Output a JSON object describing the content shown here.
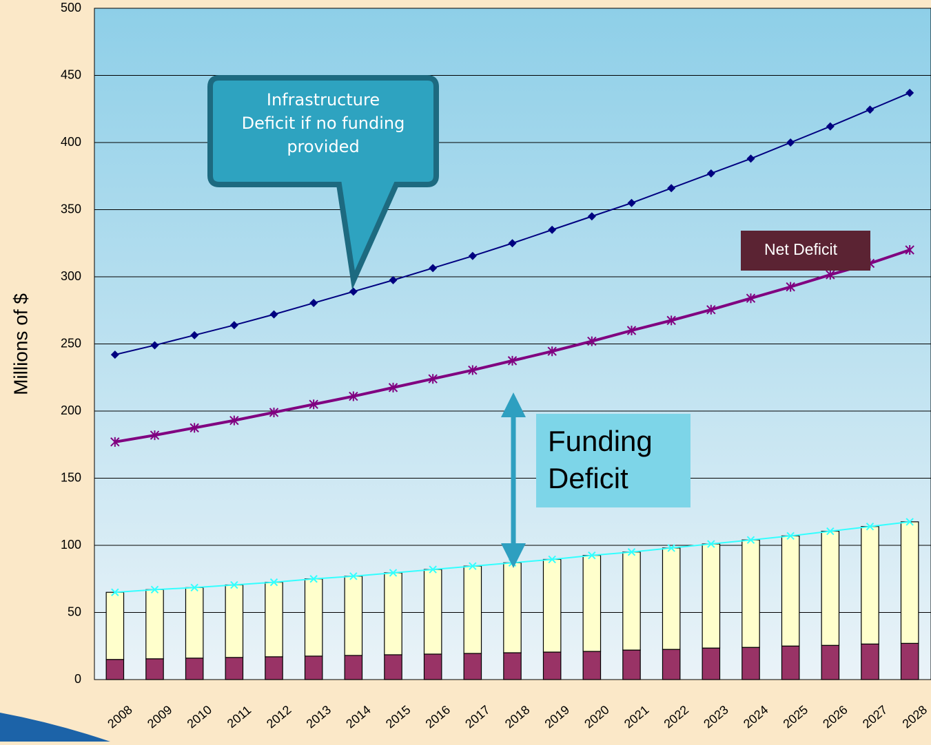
{
  "chart_data": {
    "type": "bar_line",
    "y_label": "Millions of $",
    "categories": [
      "2008",
      "2009",
      "2010",
      "2011",
      "2012",
      "2013",
      "2014",
      "2015",
      "2016",
      "2017",
      "2018",
      "2019",
      "2020",
      "2021",
      "2022",
      "2023",
      "2024",
      "2025",
      "2026",
      "2027",
      "2028"
    ],
    "bar_series": [
      {
        "color": "#993366",
        "values": [
          15,
          15.5,
          16,
          16.5,
          17,
          17.5,
          18,
          18.5,
          19,
          19.5,
          20,
          20.5,
          21,
          22,
          22.5,
          23.5,
          24,
          25,
          25.5,
          26.5,
          27
        ]
      },
      {
        "color": "#ffffcc",
        "values": [
          50,
          51.5,
          52.5,
          54,
          55.5,
          57.5,
          59,
          61,
          63,
          65,
          67,
          69,
          71.5,
          73,
          75.5,
          77.5,
          80,
          82,
          85,
          87.5,
          90.5
        ]
      }
    ],
    "line_series": [
      {
        "color": "#000080",
        "marker": "diamond",
        "width": 2,
        "values": [
          242,
          249,
          256.5,
          264,
          272,
          280.5,
          289,
          297.5,
          306.5,
          315.5,
          325,
          335,
          345,
          355,
          366,
          377,
          388,
          400,
          412,
          424.5,
          437
        ]
      },
      {
        "color": "#800080",
        "marker": "star",
        "width": 4,
        "values": [
          177,
          182,
          187.5,
          193,
          199,
          205,
          211,
          217.5,
          224,
          230.5,
          237.5,
          244.5,
          252,
          260,
          267.5,
          275.5,
          284,
          292.5,
          301.5,
          310,
          320
        ]
      },
      {
        "color": "#33ffff",
        "marker": "x",
        "width": 2,
        "values": [
          65,
          67,
          68.5,
          70.5,
          72.5,
          75,
          77,
          79.5,
          82,
          84.5,
          87,
          89.5,
          92.5,
          95,
          98,
          101,
          104,
          107,
          110.5,
          114,
          117.5
        ]
      }
    ],
    "ylim": [
      0,
      500
    ],
    "yticks": [
      0,
      50,
      100,
      150,
      200,
      250,
      300,
      350,
      400,
      450,
      500
    ],
    "grid": true,
    "annotations": [
      "Infrastructure Deficit if no funding provided",
      "Net Deficit",
      "Funding Deficit"
    ]
  }
}
